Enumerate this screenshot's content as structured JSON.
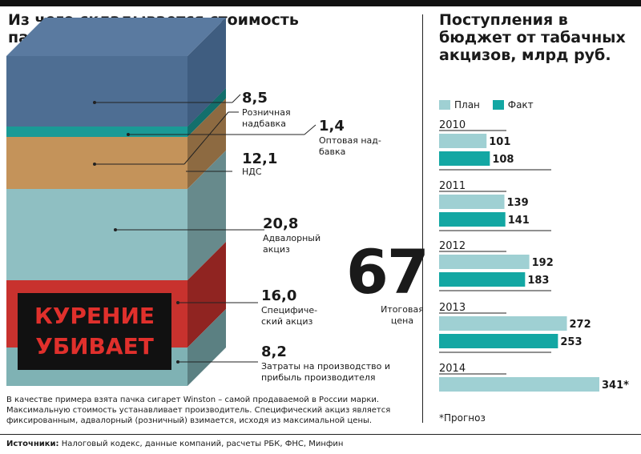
{
  "left_title": "Из чего складывается стоимость пачки сигарет, руб.",
  "right_title": "Поступления в бюджет от табачных акцизов, млрд руб.",
  "pack": {
    "layers": [
      {
        "value": "8,5",
        "label": "Розничная надбавка",
        "color": "#4e6e93"
      },
      {
        "value": "1,4",
        "label": "Оптовая над-бавка",
        "color": "#1a9a96"
      },
      {
        "value": "12,1",
        "label": "НДС",
        "color": "#c4935a"
      },
      {
        "value": "20,8",
        "label": "Адвалорный акциз",
        "color": "#8fbfc2"
      },
      {
        "value": "16,0",
        "label": "Специфиче-ский акциз",
        "color": "#c8322e"
      },
      {
        "value": "8,2",
        "label": "Затраты на производство и прибыль производителя",
        "color": "#7fb2b4"
      }
    ],
    "warning_line1": "КУРЕНИЕ",
    "warning_line2": "УБИВАЕТ",
    "total": "67",
    "total_label": "Итоговая цена"
  },
  "note": "В качестве примера взята пачка сигарет Winston – самой продаваемой в России марки. Максимальную стоимость устанавливает производитель. Специфический акциз является фиксированным, адвалорный (розничный) взимается, исходя из максимальной цены.",
  "source_label": "Источники:",
  "source_text": " Налоговый кодекс, данные компаний, расчеты РБК, ФНС, Минфин",
  "footnote": "*Прогноз",
  "colors": {
    "plan": "#9fd0d3",
    "fact": "#13a7a3"
  },
  "chart_data": {
    "type": "bar",
    "title": "Поступления в бюджет от табачных акцизов, млрд руб.",
    "categories": [
      "2010",
      "2011",
      "2012",
      "2013",
      "2014"
    ],
    "series": [
      {
        "name": "План",
        "values": [
          101,
          139,
          192,
          272,
          341
        ],
        "labels": [
          "101",
          "139",
          "192",
          "272",
          "341*"
        ]
      },
      {
        "name": "Факт",
        "values": [
          108,
          141,
          183,
          253,
          null
        ],
        "labels": [
          "108",
          "141",
          "183",
          "253",
          ""
        ]
      }
    ],
    "xlim": [
      0,
      341
    ],
    "legend": "top",
    "grid": false
  }
}
